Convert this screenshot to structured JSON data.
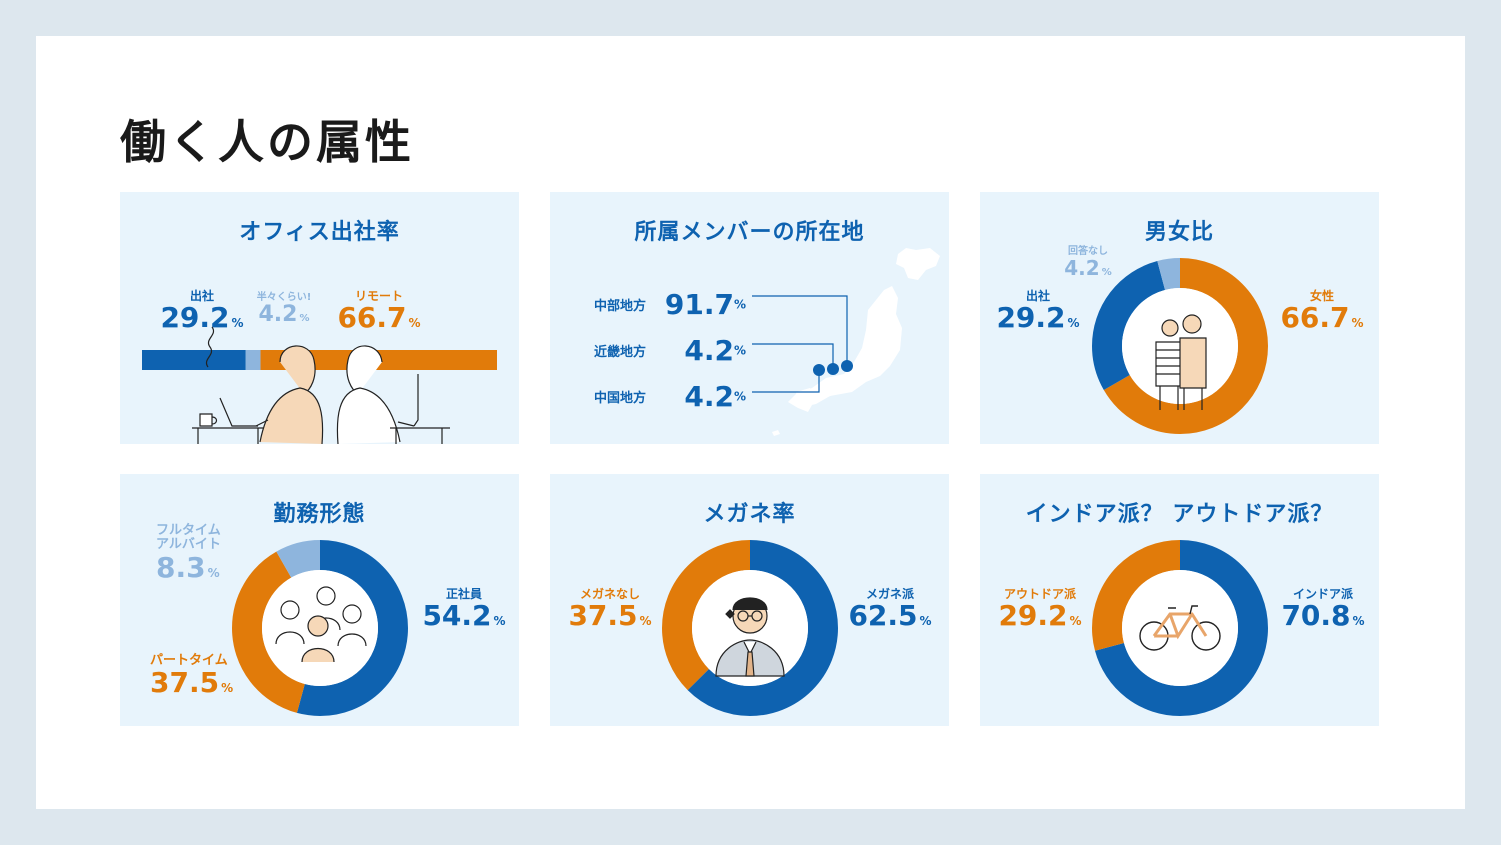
{
  "title": "働く人の属性",
  "colors": {
    "blue": "#0e62b0",
    "orange": "#e17b0a",
    "light": "#8eb5dd",
    "card": "#e8f4fc"
  },
  "chart_data": [
    {
      "type": "bar",
      "title": "オフィス出社率",
      "orientation": "stacked-horizontal",
      "categories": [
        "出社",
        "半々くらい!",
        "リモート"
      ],
      "values": [
        29.2,
        4.2,
        66.7
      ],
      "labels": [
        {
          "name": "出社",
          "value": "29.2",
          "unit": "%"
        },
        {
          "name": "半々くらい!",
          "value": "4.2",
          "unit": "%"
        },
        {
          "name": "リモート",
          "value": "66.7",
          "unit": "%"
        }
      ]
    },
    {
      "type": "bar",
      "title": "所属メンバーの所在地",
      "categories": [
        "中部地方",
        "近畿地方",
        "中国地方"
      ],
      "values": [
        91.7,
        4.2,
        4.2
      ],
      "labels": [
        {
          "name": "中部地方",
          "value": "91.7",
          "unit": "%"
        },
        {
          "name": "近畿地方",
          "value": "4.2",
          "unit": "%"
        },
        {
          "name": "中国地方",
          "value": "4.2",
          "unit": "%"
        }
      ]
    },
    {
      "type": "pie",
      "title": "男女比",
      "categories": [
        "女性",
        "出社",
        "回答なし"
      ],
      "values": [
        66.7,
        29.2,
        4.2
      ],
      "labels": [
        {
          "name": "女性",
          "value": "66.7",
          "unit": "%"
        },
        {
          "name": "出社",
          "value": "29.2",
          "unit": "%"
        },
        {
          "name": "回答なし",
          "value": "4.2",
          "unit": "%"
        }
      ]
    },
    {
      "type": "pie",
      "title": "勤務形態",
      "categories": [
        "正社員",
        "パートタイム",
        "フルタイムアルバイト"
      ],
      "values": [
        54.2,
        37.5,
        8.3
      ],
      "labels": [
        {
          "name": "正社員",
          "value": "54.2",
          "unit": "%"
        },
        {
          "name": "パートタイム",
          "value": "37.5",
          "unit": "%"
        },
        {
          "name1": "フルタイム",
          "name2": "アルバイト",
          "value": "8.3",
          "unit": "%"
        }
      ]
    },
    {
      "type": "pie",
      "title": "メガネ率",
      "categories": [
        "メガネ派",
        "メガネなし"
      ],
      "values": [
        62.5,
        37.5
      ],
      "labels": [
        {
          "name": "メガネ派",
          "value": "62.5",
          "unit": "%"
        },
        {
          "name": "メガネなし",
          "value": "37.5",
          "unit": "%"
        }
      ]
    },
    {
      "type": "pie",
      "title": "インドア派？ アウトドア派？",
      "categories": [
        "インドア派",
        "アウトドア派"
      ],
      "values": [
        70.8,
        29.2
      ],
      "labels": [
        {
          "name": "インドア派",
          "value": "70.8",
          "unit": "%"
        },
        {
          "name": "アウトドア派",
          "value": "29.2",
          "unit": "%"
        }
      ]
    }
  ]
}
